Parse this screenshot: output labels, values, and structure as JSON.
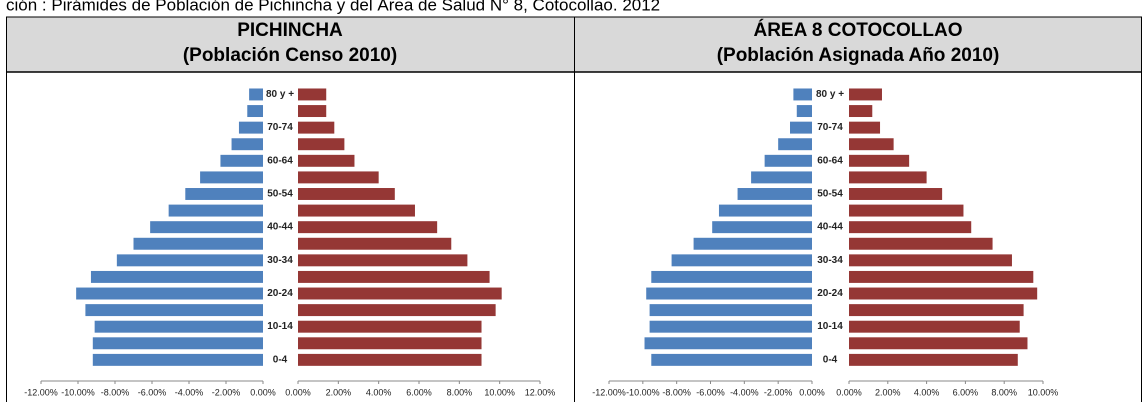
{
  "caption": "ción : Pirámides de Población de Pichincha y del Área de Salud N° 8, Cotocollao. 2012",
  "chart_data": [
    {
      "type": "pyramid",
      "title": "PICHINCHA",
      "subtitle": "(Población Censo 2010)",
      "categories": [
        "80 y +",
        null,
        "70-74",
        null,
        "60-64",
        null,
        "50-54",
        null,
        "40-44",
        null,
        "30-34",
        null,
        "20-24",
        null,
        "10-14",
        null,
        "0-4"
      ],
      "series": [
        {
          "color": "#4f81bd",
          "axis": "x",
          "values": [
            -0.75,
            -0.85,
            -1.3,
            -1.7,
            -2.3,
            -3.4,
            -4.2,
            -5.1,
            -6.1,
            -7.0,
            -7.9,
            -9.3,
            -10.1,
            -9.6,
            -9.1,
            -9.2,
            -9.2
          ]
        },
        {
          "color": "#953735",
          "axis": "x2",
          "values": [
            1.4,
            1.4,
            1.8,
            2.3,
            2.8,
            4.0,
            4.8,
            5.8,
            6.9,
            7.6,
            8.4,
            9.5,
            10.1,
            9.8,
            9.1,
            9.1,
            9.1
          ]
        }
      ],
      "xlim": [
        -12,
        0
      ],
      "xticks": [
        {
          "value": -12,
          "label": "-12.00%"
        },
        {
          "value": -10,
          "label": "-10.00%"
        },
        {
          "value": -8,
          "label": "-8.00%"
        },
        {
          "value": -6,
          "label": "-6.00%"
        },
        {
          "value": -4,
          "label": "-4.00%"
        },
        {
          "value": -2,
          "label": "-2.00%"
        },
        {
          "value": 0,
          "label": "0.00%"
        }
      ],
      "x2lim": [
        0,
        12
      ],
      "x2ticks": [
        {
          "value": 0,
          "label": "0.00%"
        },
        {
          "value": 2,
          "label": "2.00%"
        },
        {
          "value": 4,
          "label": "4.00%"
        },
        {
          "value": 6,
          "label": "6.00%"
        },
        {
          "value": 8,
          "label": "8.00%"
        },
        {
          "value": 10,
          "label": "10.00%"
        },
        {
          "value": 12,
          "label": "12.00%"
        }
      ]
    },
    {
      "type": "pyramid",
      "title": "ÁREA 8 COTOCOLLAO",
      "subtitle": "(Población Asignada Año 2010)",
      "categories": [
        "80 y +",
        null,
        "70-74",
        null,
        "60-64",
        null,
        "50-54",
        null,
        "40-44",
        null,
        "30-34",
        null,
        "20-24",
        null,
        "10-14",
        null,
        "0-4"
      ],
      "series": [
        {
          "color": "#4f81bd",
          "axis": "x",
          "values": [
            -1.1,
            -0.9,
            -1.3,
            -2.0,
            -2.8,
            -3.6,
            -4.4,
            -5.5,
            -5.9,
            -7.0,
            -8.3,
            -9.5,
            -9.8,
            -9.6,
            -9.6,
            -9.9,
            -9.5
          ]
        },
        {
          "color": "#953735",
          "axis": "x2",
          "values": [
            1.7,
            1.2,
            1.6,
            2.3,
            3.1,
            4.0,
            4.8,
            5.9,
            6.3,
            7.4,
            8.4,
            9.5,
            9.7,
            9.0,
            8.8,
            9.2,
            8.7
          ]
        }
      ],
      "xlim": [
        -12,
        0
      ],
      "xticks": [
        {
          "value": -12,
          "label": "-12.00%"
        },
        {
          "value": -10,
          "label": "-10.00%"
        },
        {
          "value": -8,
          "label": "-8.00%"
        },
        {
          "value": -6,
          "label": "-6.00%"
        },
        {
          "value": -4,
          "label": "-4.00%"
        },
        {
          "value": -2,
          "label": "-2.00%"
        },
        {
          "value": 0,
          "label": "0.00%"
        }
      ],
      "x2lim": [
        0,
        10
      ],
      "x2ticks": [
        {
          "value": 0,
          "label": "0.00%"
        },
        {
          "value": 2,
          "label": "2.00%"
        },
        {
          "value": 4,
          "label": "4.00%"
        },
        {
          "value": 6,
          "label": "6.00%"
        },
        {
          "value": 8,
          "label": "8.00%"
        },
        {
          "value": 10,
          "label": "10.00%"
        }
      ]
    }
  ]
}
